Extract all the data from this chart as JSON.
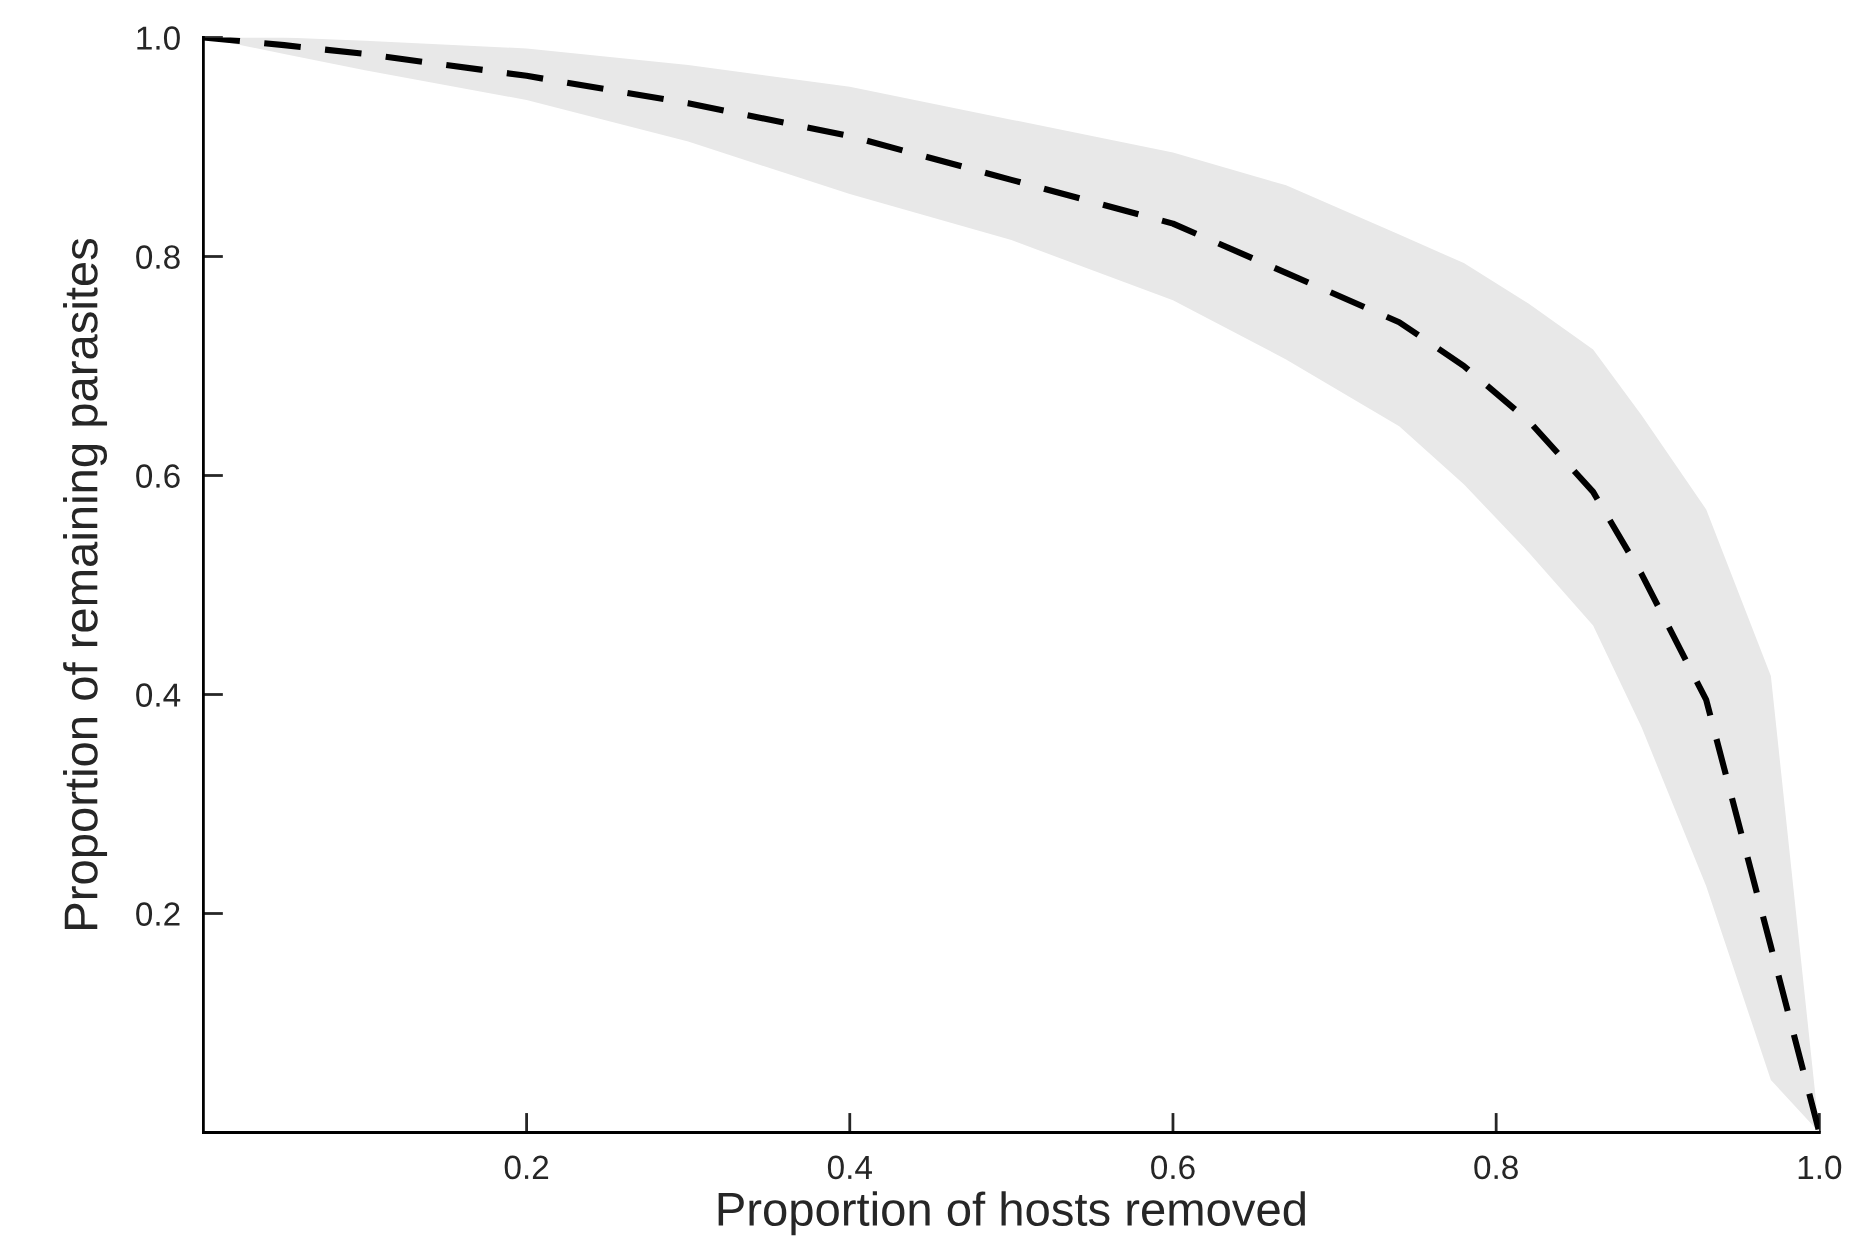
{
  "chart_data": {
    "type": "line",
    "xlabel": "Proportion of hosts removed",
    "ylabel": "Proportion of remaining parasites",
    "x": [
      0,
      0.05,
      0.1,
      0.2,
      0.3,
      0.4,
      0.5,
      0.6,
      0.67,
      0.74,
      0.78,
      0.82,
      0.86,
      0.89,
      0.93,
      0.97,
      1.0
    ],
    "series": [
      {
        "color": "#000000",
        "values": [
          1.0,
          0.993,
          0.985,
          0.965,
          0.94,
          0.91,
          0.87,
          0.83,
          0.785,
          0.74,
          0.7,
          0.65,
          0.585,
          0.51,
          0.395,
          0.17,
          0.0
        ],
        "upper": [
          1.0,
          1.0,
          0.997,
          0.99,
          0.975,
          0.955,
          0.925,
          0.895,
          0.865,
          0.82,
          0.794,
          0.757,
          0.715,
          0.655,
          0.569,
          0.417,
          0.0
        ],
        "lower": [
          1.0,
          0.985,
          0.97,
          0.943,
          0.905,
          0.857,
          0.815,
          0.76,
          0.706,
          0.645,
          0.592,
          0.53,
          0.463,
          0.37,
          0.225,
          0.048,
          0.0
        ]
      }
    ],
    "xlim": [
      0,
      1
    ],
    "ylim": [
      0,
      1
    ],
    "xticks": [
      0.2,
      0.4,
      0.6,
      0.8,
      {
        "value": 1,
        "label": "1.0"
      }
    ],
    "yticks": [
      0.2,
      0.4,
      0.6,
      0.8,
      {
        "value": 1,
        "label": "1.0"
      }
    ],
    "grid": false,
    "marker": "none",
    "line_style": "dashed"
  }
}
